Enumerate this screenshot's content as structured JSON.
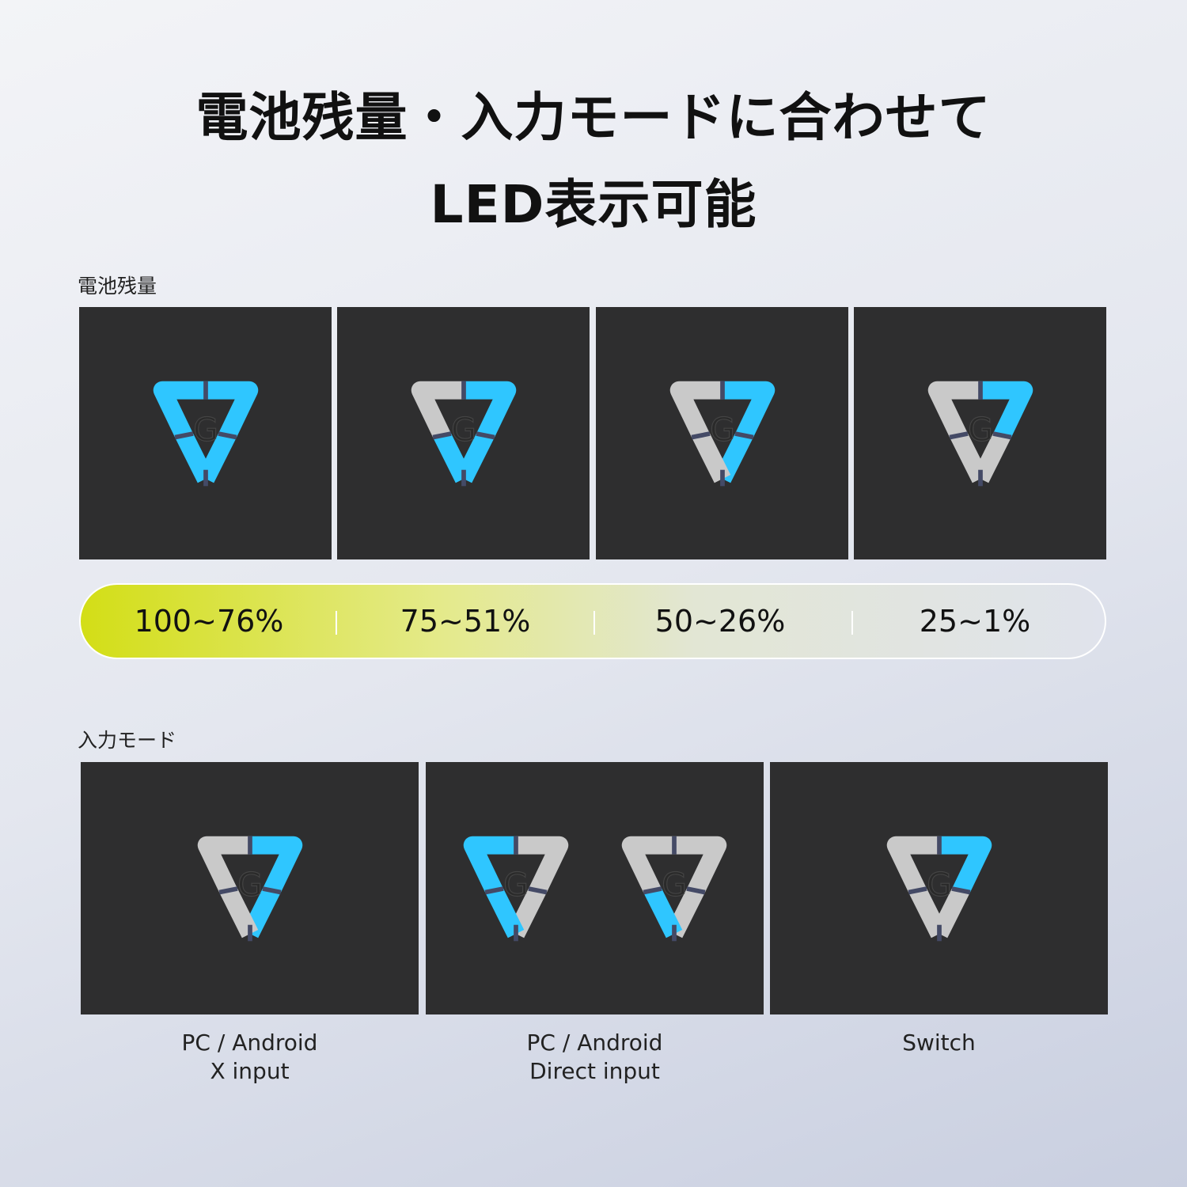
{
  "title": {
    "line1": "電池残量・入力モードに合わせて",
    "line2": "LED表示可能"
  },
  "colors": {
    "lit": "#2fc6ff",
    "unlit": "#c9c9c9",
    "tile": "#2e2e2f",
    "bar_accent": "#d3de16"
  },
  "battery": {
    "label": "電池残量",
    "levels": [
      {
        "range": "100~76%",
        "lit": [
          "top-left",
          "top-right",
          "right-lower",
          "left-lower"
        ]
      },
      {
        "range": "75~51%",
        "lit": [
          "top-right",
          "right-lower",
          "left-lower"
        ]
      },
      {
        "range": "50~26%",
        "lit": [
          "top-right",
          "right-lower"
        ]
      },
      {
        "range": "25~1%",
        "lit": [
          "top-right"
        ]
      }
    ]
  },
  "input_mode": {
    "label": "入力モード",
    "modes": [
      {
        "line1": "PC / Android",
        "line2": "X input",
        "leds": [
          [
            "top-right",
            "right-lower"
          ]
        ]
      },
      {
        "line1": "PC / Android",
        "line2": "Direct input",
        "leds": [
          [
            "top-left",
            "left-lower"
          ],
          [
            "left-lower"
          ]
        ]
      },
      {
        "line1": "Switch",
        "line2": "",
        "leds": [
          [
            "top-right"
          ]
        ]
      }
    ]
  }
}
